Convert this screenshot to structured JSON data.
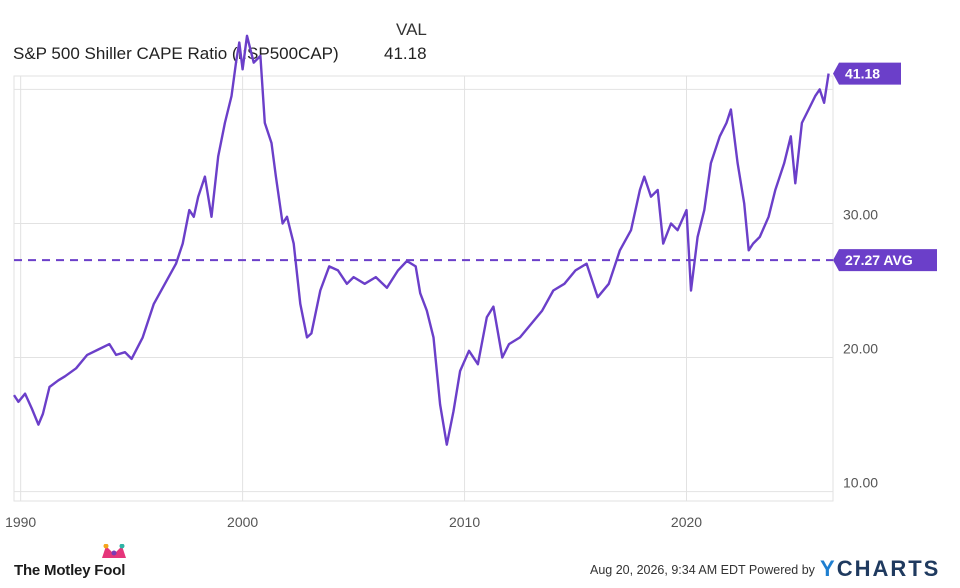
{
  "legend": {
    "header": "VAL",
    "series_name": "S&P 500 Shiller CAPE Ratio (I:SP500CAP)",
    "series_value": "41.18"
  },
  "colors": {
    "series": "#6b3fc9",
    "grid": "#e2e2e2",
    "axis_text": "#555555"
  },
  "footer": {
    "date_text": "Aug 20, 2026, 9:34 AM EDT",
    "powered_by": "Powered by",
    "ycharts_y": "Y",
    "ycharts_rest": "CHARTS",
    "brand": "The Motley Fool"
  },
  "chart_data": {
    "type": "line",
    "title": "",
    "xlabel": "",
    "ylabel": "",
    "xlim": [
      1989.7,
      2026.6
    ],
    "ylim": [
      9.3,
      41.0
    ],
    "grid": true,
    "x_ticks": [
      {
        "value": 1990,
        "label": "1990"
      },
      {
        "value": 2000,
        "label": "2000"
      },
      {
        "value": 2010,
        "label": "2010"
      },
      {
        "value": 2020,
        "label": "2020"
      }
    ],
    "y_ticks": [
      {
        "value": 10,
        "label": "10.00"
      },
      {
        "value": 20,
        "label": "20.00"
      },
      {
        "value": 30,
        "label": "30.00"
      }
    ],
    "series": [
      {
        "name": "S&P 500 Shiller CAPE Ratio (I:SP500CAP)",
        "points": [
          [
            1989.7,
            17.2
          ],
          [
            1989.9,
            16.7
          ],
          [
            1990.2,
            17.3
          ],
          [
            1990.5,
            16.2
          ],
          [
            1990.8,
            15.0
          ],
          [
            1991.0,
            15.8
          ],
          [
            1991.3,
            17.8
          ],
          [
            1991.7,
            18.3
          ],
          [
            1992.0,
            18.6
          ],
          [
            1992.5,
            19.2
          ],
          [
            1993.0,
            20.2
          ],
          [
            1993.5,
            20.6
          ],
          [
            1994.0,
            21.0
          ],
          [
            1994.3,
            20.2
          ],
          [
            1994.7,
            20.4
          ],
          [
            1995.0,
            19.9
          ],
          [
            1995.5,
            21.5
          ],
          [
            1996.0,
            24.0
          ],
          [
            1996.5,
            25.5
          ],
          [
            1997.0,
            27.0
          ],
          [
            1997.3,
            28.5
          ],
          [
            1997.6,
            31.0
          ],
          [
            1997.8,
            30.5
          ],
          [
            1998.0,
            32.0
          ],
          [
            1998.3,
            33.5
          ],
          [
            1998.6,
            30.5
          ],
          [
            1998.9,
            35.0
          ],
          [
            1999.2,
            37.5
          ],
          [
            1999.5,
            39.5
          ],
          [
            1999.7,
            42.0
          ],
          [
            1999.85,
            43.5
          ],
          [
            2000.0,
            41.5
          ],
          [
            2000.2,
            44.0
          ],
          [
            2000.5,
            42.0
          ],
          [
            2000.8,
            42.5
          ],
          [
            2001.0,
            37.5
          ],
          [
            2001.3,
            36.0
          ],
          [
            2001.5,
            33.5
          ],
          [
            2001.8,
            30.0
          ],
          [
            2002.0,
            30.5
          ],
          [
            2002.3,
            28.5
          ],
          [
            2002.6,
            24.0
          ],
          [
            2002.9,
            21.5
          ],
          [
            2003.1,
            21.8
          ],
          [
            2003.5,
            25.0
          ],
          [
            2003.9,
            26.8
          ],
          [
            2004.3,
            26.5
          ],
          [
            2004.7,
            25.5
          ],
          [
            2005.0,
            26.0
          ],
          [
            2005.5,
            25.5
          ],
          [
            2006.0,
            26.0
          ],
          [
            2006.5,
            25.2
          ],
          [
            2007.0,
            26.5
          ],
          [
            2007.4,
            27.2
          ],
          [
            2007.8,
            26.8
          ],
          [
            2008.0,
            24.8
          ],
          [
            2008.3,
            23.5
          ],
          [
            2008.6,
            21.5
          ],
          [
            2008.9,
            16.5
          ],
          [
            2009.2,
            13.5
          ],
          [
            2009.5,
            16.0
          ],
          [
            2009.8,
            19.0
          ],
          [
            2010.2,
            20.5
          ],
          [
            2010.6,
            19.5
          ],
          [
            2011.0,
            23.0
          ],
          [
            2011.3,
            23.8
          ],
          [
            2011.7,
            20.0
          ],
          [
            2012.0,
            21.0
          ],
          [
            2012.5,
            21.5
          ],
          [
            2013.0,
            22.5
          ],
          [
            2013.5,
            23.5
          ],
          [
            2014.0,
            25.0
          ],
          [
            2014.5,
            25.5
          ],
          [
            2015.0,
            26.5
          ],
          [
            2015.5,
            27.0
          ],
          [
            2016.0,
            24.5
          ],
          [
            2016.5,
            25.5
          ],
          [
            2017.0,
            28.0
          ],
          [
            2017.5,
            29.5
          ],
          [
            2017.9,
            32.5
          ],
          [
            2018.1,
            33.5
          ],
          [
            2018.4,
            32.0
          ],
          [
            2018.7,
            32.5
          ],
          [
            2018.95,
            28.5
          ],
          [
            2019.3,
            30.0
          ],
          [
            2019.6,
            29.5
          ],
          [
            2020.0,
            31.0
          ],
          [
            2020.2,
            25.0
          ],
          [
            2020.5,
            29.0
          ],
          [
            2020.8,
            31.0
          ],
          [
            2021.1,
            34.5
          ],
          [
            2021.5,
            36.5
          ],
          [
            2021.8,
            37.5
          ],
          [
            2022.0,
            38.5
          ],
          [
            2022.3,
            34.5
          ],
          [
            2022.6,
            31.5
          ],
          [
            2022.8,
            28.0
          ],
          [
            2023.0,
            28.5
          ],
          [
            2023.3,
            29.0
          ],
          [
            2023.7,
            30.5
          ],
          [
            2024.0,
            32.5
          ],
          [
            2024.4,
            34.5
          ],
          [
            2024.7,
            36.5
          ],
          [
            2024.9,
            33.0
          ],
          [
            2025.2,
            37.5
          ],
          [
            2025.5,
            38.5
          ],
          [
            2025.8,
            39.5
          ],
          [
            2026.0,
            40.0
          ],
          [
            2026.2,
            39.0
          ],
          [
            2026.4,
            41.18
          ]
        ]
      }
    ],
    "average": {
      "value": 27.27,
      "label": "27.27 AVG"
    },
    "last_value": {
      "value": 41.18,
      "label": "41.18"
    }
  }
}
